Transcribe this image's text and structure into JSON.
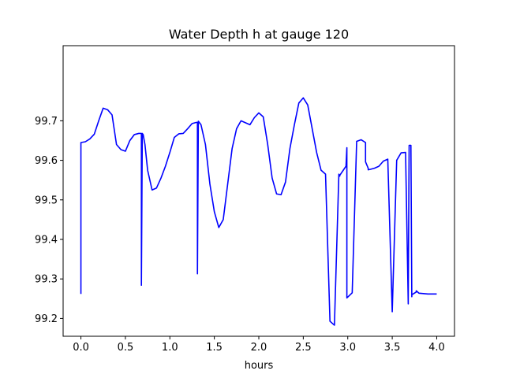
{
  "chart_data": {
    "type": "line",
    "title": "Water Depth h at gauge 120",
    "xlabel": "hours",
    "ylabel": "",
    "xlim": [
      -0.2,
      4.2
    ],
    "ylim": [
      99.155,
      99.89
    ],
    "xticks": [
      0.0,
      0.5,
      1.0,
      1.5,
      2.0,
      2.5,
      3.0,
      3.5,
      4.0
    ],
    "xtick_labels": [
      "0.0",
      "0.5",
      "1.0",
      "1.5",
      "2.0",
      "2.5",
      "3.0",
      "3.5",
      "4.0"
    ],
    "yticks": [
      99.2,
      99.3,
      99.4,
      99.5,
      99.6,
      99.7
    ],
    "ytick_labels": [
      "99.2",
      "99.3",
      "99.4",
      "99.5",
      "99.6",
      "99.7"
    ],
    "grid": false,
    "series": [
      {
        "color": "#0000ff",
        "x": [
          0.0,
          0.0,
          0.05,
          0.1,
          0.15,
          0.2,
          0.25,
          0.3,
          0.35,
          0.4,
          0.45,
          0.5,
          0.55,
          0.6,
          0.65,
          0.68,
          0.68,
          0.69,
          0.7,
          0.72,
          0.75,
          0.8,
          0.85,
          0.9,
          0.95,
          1.0,
          1.05,
          1.1,
          1.15,
          1.2,
          1.25,
          1.3,
          1.31,
          1.31,
          1.32,
          1.35,
          1.4,
          1.45,
          1.5,
          1.55,
          1.6,
          1.65,
          1.7,
          1.75,
          1.8,
          1.85,
          1.9,
          1.95,
          2.0,
          2.05,
          2.1,
          2.15,
          2.2,
          2.25,
          2.3,
          2.35,
          2.4,
          2.45,
          2.5,
          2.55,
          2.6,
          2.65,
          2.7,
          2.75,
          2.8,
          2.85,
          2.9,
          2.91,
          2.91,
          2.98,
          2.99,
          2.99,
          3.05,
          3.1,
          3.15,
          3.2,
          3.2,
          3.2,
          3.23,
          3.23,
          3.25,
          3.3,
          3.35,
          3.4,
          3.45,
          3.5,
          3.55,
          3.6,
          3.65,
          3.68,
          3.68,
          3.69,
          3.71,
          3.72,
          3.72,
          3.77,
          3.77,
          3.78,
          3.8,
          3.85,
          3.9,
          3.95,
          4.0
        ],
        "y": [
          99.262,
          99.645,
          99.647,
          99.654,
          99.666,
          99.7,
          99.732,
          99.728,
          99.715,
          99.64,
          99.627,
          99.623,
          99.65,
          99.665,
          99.668,
          99.668,
          99.284,
          99.668,
          99.665,
          99.64,
          99.575,
          99.525,
          99.53,
          99.555,
          99.585,
          99.62,
          99.658,
          99.667,
          99.668,
          99.68,
          99.693,
          99.696,
          99.696,
          99.313,
          99.699,
          99.69,
          99.64,
          99.54,
          99.47,
          99.43,
          99.45,
          99.54,
          99.63,
          99.68,
          99.7,
          99.695,
          99.69,
          99.708,
          99.72,
          99.71,
          99.64,
          99.555,
          99.515,
          99.513,
          99.545,
          99.63,
          99.69,
          99.745,
          99.758,
          99.74,
          99.68,
          99.62,
          99.575,
          99.565,
          99.193,
          99.183,
          99.565,
          99.56,
          99.562,
          99.585,
          99.632,
          99.252,
          99.265,
          99.648,
          99.652,
          99.645,
          99.625,
          99.596,
          99.58,
          99.576,
          99.577,
          99.58,
          99.585,
          99.598,
          99.603,
          99.217,
          99.6,
          99.619,
          99.62,
          99.237,
          99.248,
          99.638,
          99.638,
          99.255,
          99.26,
          99.267,
          99.27,
          99.268,
          99.264,
          99.263,
          99.262,
          99.262,
          99.262
        ]
      }
    ]
  }
}
